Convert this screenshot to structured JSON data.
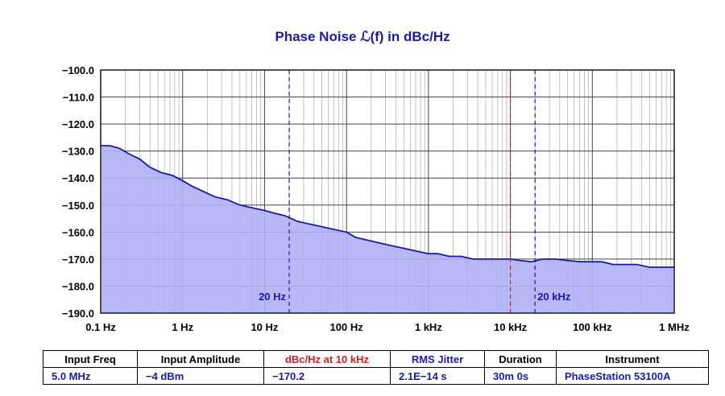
{
  "chart_data": {
    "type": "line",
    "title": "Phase Noise ℒ(f) in dBc/Hz",
    "x_scale": "log",
    "xlim": [
      0.1,
      1000000
    ],
    "ylim": [
      -190,
      -100
    ],
    "y_ticks": [
      -100,
      -110,
      -120,
      -130,
      -140,
      -150,
      -160,
      -170,
      -180,
      -190
    ],
    "y_tick_labels": [
      "−100.0",
      "−110.0",
      "−120.0",
      "−130.0",
      "−140.0",
      "−150.0",
      "−160.0",
      "−170.0",
      "−180.0",
      "−190.0"
    ],
    "x_ticks": [
      0.1,
      1,
      10,
      100,
      1000,
      10000,
      100000,
      1000000
    ],
    "x_tick_labels": [
      "0.1 Hz",
      "1 Hz",
      "10 Hz",
      "100 Hz",
      "1 kHz",
      "10 kHz",
      "100 kHz",
      "1 MHz"
    ],
    "grid": true,
    "markers": [
      {
        "x": 20,
        "label": "20 Hz",
        "color": "#1a1aa8"
      },
      {
        "x": 10000,
        "label": "",
        "color": "#d02020"
      },
      {
        "x": 20000,
        "label": "20 kHz",
        "color": "#1a1aa8"
      }
    ],
    "series": [
      {
        "color": "#1a1aa8",
        "fill": "#b0b0f5",
        "x": [
          0.1,
          0.13,
          0.17,
          0.22,
          0.3,
          0.4,
          0.55,
          0.75,
          1,
          1.3,
          1.8,
          2.5,
          3.5,
          5,
          7,
          10,
          13,
          18,
          25,
          35,
          50,
          70,
          100,
          130,
          180,
          250,
          350,
          500,
          700,
          1000,
          1300,
          1800,
          2500,
          3500,
          5000,
          7000,
          10000,
          13000,
          18000,
          25000,
          35000,
          50000,
          70000,
          100000,
          130000,
          180000,
          250000,
          350000,
          500000,
          700000,
          1000000
        ],
        "y": [
          -128,
          -128,
          -129,
          -131,
          -133,
          -136,
          -138,
          -139,
          -141,
          -143,
          -145,
          -147,
          -148,
          -150,
          -151,
          -152,
          -153,
          -154,
          -156,
          -157,
          -158,
          -159,
          -160,
          -162,
          -163,
          -164,
          -165,
          -166,
          -167,
          -168,
          -168,
          -169,
          -169,
          -170,
          -170,
          -170,
          -170,
          -170.5,
          -171,
          -170,
          -170,
          -170.5,
          -171,
          -171,
          -171,
          -172,
          -172,
          -172,
          -173,
          -173,
          -173
        ]
      }
    ]
  },
  "table": {
    "headers": [
      "Input Freq",
      "Input Amplitude",
      "dBc/Hz at 10 kHz",
      "RMS Jitter",
      "Duration",
      "Instrument"
    ],
    "header_colors": [
      "#000000",
      "#000000",
      "#d02020",
      "#1a1aa8",
      "#000000",
      "#000000"
    ],
    "values": [
      "5.0 MHz",
      "−4 dBm",
      "−170.2",
      "2.1E−14 s",
      "30m 0s",
      "PhaseStation 53100A"
    ]
  }
}
